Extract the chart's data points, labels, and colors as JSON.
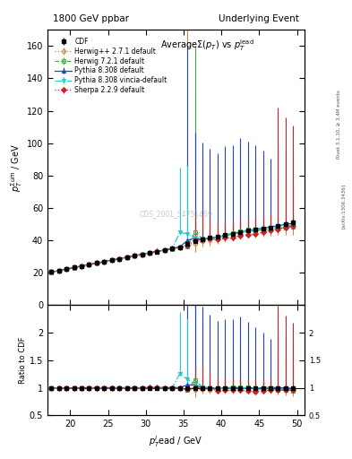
{
  "title_left": "1800 GeV ppbar",
  "title_right": "Underlying Event",
  "ylabel_main": "$p_T^{\\Sigma um}$ / GeV",
  "ylabel_ratio": "Ratio to CDF",
  "xlabel": "$p_T^{l}$ead / GeV",
  "plot_title": "Average$\\Sigma(p_{T})$ vs $p_T^{\\rm lead}$",
  "watermark": "CDS_2001_S4751469",
  "right_label": "Rivet 3.1.10, ≥ 3.4M events",
  "right_label2": "[arXiv:1306.3436]",
  "xlim": [
    17,
    51
  ],
  "ylim_main": [
    0,
    170
  ],
  "ylim_ratio": [
    0.5,
    2.5
  ],
  "xticks": [
    20,
    25,
    30,
    35,
    40,
    45,
    50
  ],
  "yticks_main": [
    0,
    20,
    40,
    60,
    80,
    100,
    120,
    140,
    160
  ],
  "yticks_ratio": [
    0.5,
    1.0,
    1.5,
    2.0
  ],
  "cdf": {
    "x": [
      17.5,
      18.5,
      19.5,
      20.5,
      21.5,
      22.5,
      23.5,
      24.5,
      25.5,
      26.5,
      27.5,
      28.5,
      29.5,
      30.5,
      31.5,
      32.5,
      33.5,
      34.5,
      35.5,
      36.5,
      37.5,
      38.5,
      39.5,
      40.5,
      41.5,
      42.5,
      43.5,
      44.5,
      45.5,
      46.5,
      47.5,
      48.5,
      49.5
    ],
    "y": [
      20.5,
      21.5,
      22.5,
      23.3,
      24.2,
      25.1,
      26.0,
      26.9,
      27.8,
      28.7,
      29.6,
      30.5,
      31.4,
      32.2,
      33.1,
      34.0,
      34.9,
      35.8,
      38.0,
      39.5,
      40.5,
      41.5,
      42.5,
      43.5,
      44.0,
      45.0,
      46.0,
      47.0,
      47.5,
      48.0,
      49.0,
      50.0,
      51.0
    ],
    "yerr": [
      0.2,
      0.2,
      0.2,
      0.2,
      0.2,
      0.2,
      0.2,
      0.2,
      0.2,
      0.2,
      0.2,
      0.2,
      0.2,
      0.2,
      0.2,
      0.2,
      0.2,
      0.2,
      0.3,
      0.3,
      0.3,
      0.3,
      0.4,
      0.4,
      0.5,
      0.5,
      0.6,
      0.7,
      0.8,
      1.0,
      1.2,
      1.5,
      2.0
    ],
    "color": "#000000",
    "marker": "s",
    "label": "CDF"
  },
  "herwig271": {
    "x": [
      17.5,
      18.5,
      19.5,
      20.5,
      21.5,
      22.5,
      23.5,
      24.5,
      25.5,
      26.5,
      27.5,
      28.5,
      29.5,
      30.5,
      31.5,
      32.5,
      33.5,
      34.5,
      35.5,
      36.5,
      37.5,
      38.5,
      39.5,
      40.5,
      41.5,
      42.5,
      43.5,
      44.5,
      45.5,
      46.5,
      47.5,
      48.5,
      49.5
    ],
    "y": [
      20.3,
      21.3,
      22.3,
      23.2,
      24.1,
      25.0,
      25.9,
      26.8,
      27.7,
      28.6,
      29.5,
      30.4,
      31.3,
      32.2,
      33.1,
      34.0,
      34.9,
      35.8,
      36.7,
      38.0,
      39.5,
      40.0,
      41.0,
      42.5,
      43.5,
      44.5,
      45.5,
      46.0,
      46.5,
      47.0,
      47.5,
      48.0,
      48.5
    ],
    "yerr_lo": [
      0.2,
      0.2,
      0.2,
      0.2,
      0.2,
      0.2,
      0.2,
      0.2,
      0.2,
      0.2,
      0.2,
      0.2,
      0.2,
      0.2,
      0.2,
      0.2,
      0.2,
      0.2,
      0.5,
      5.0,
      3.0,
      3.0,
      3.0,
      3.5,
      4.0,
      4.0,
      4.0,
      4.0,
      4.0,
      4.0,
      4.0,
      4.5,
      5.0
    ],
    "yerr_hi": [
      0.2,
      0.2,
      0.2,
      0.2,
      0.2,
      0.2,
      0.2,
      0.2,
      0.2,
      0.2,
      0.2,
      0.2,
      0.2,
      0.2,
      0.2,
      0.2,
      0.2,
      0.2,
      150.0,
      90.0,
      50.0,
      45.0,
      40.0,
      42.0,
      40.0,
      38.0,
      35.0,
      33.0,
      35.0,
      32.0,
      30.0,
      28.0,
      25.0
    ],
    "color": "#cc8844",
    "linestyle": "dotted",
    "marker": "o",
    "mfc": "none",
    "label": "Herwig++ 2.7.1 default"
  },
  "herwig721": {
    "x": [
      17.5,
      18.5,
      19.5,
      20.5,
      21.5,
      22.5,
      23.5,
      24.5,
      25.5,
      26.5,
      27.5,
      28.5,
      29.5,
      30.5,
      31.5,
      32.5,
      33.5,
      34.5,
      35.5,
      36.5,
      37.5,
      38.5,
      39.5,
      40.5,
      41.5,
      42.5,
      43.5,
      44.5,
      45.5,
      46.5,
      47.5,
      48.5,
      49.5
    ],
    "y": [
      20.4,
      21.3,
      22.3,
      23.2,
      24.1,
      25.0,
      26.0,
      26.9,
      27.8,
      28.7,
      29.6,
      30.5,
      31.4,
      32.2,
      33.1,
      33.9,
      34.8,
      35.7,
      36.5,
      45.0,
      41.0,
      41.5,
      42.5,
      43.5,
      44.5,
      45.5,
      46.5,
      46.0,
      46.5,
      47.0,
      47.5,
      48.0,
      48.5
    ],
    "yerr_lo": [
      0.2,
      0.2,
      0.2,
      0.2,
      0.2,
      0.2,
      0.2,
      0.2,
      0.2,
      0.2,
      0.2,
      0.2,
      0.2,
      0.2,
      0.2,
      0.2,
      0.2,
      0.2,
      0.2,
      1.5,
      1.0,
      1.0,
      1.0,
      1.0,
      1.0,
      1.0,
      1.0,
      1.0,
      1.0,
      1.0,
      1.0,
      1.0,
      1.0
    ],
    "yerr_hi": [
      0.2,
      0.2,
      0.2,
      0.2,
      0.2,
      0.2,
      0.2,
      0.2,
      0.2,
      0.2,
      0.2,
      0.2,
      0.2,
      0.2,
      0.2,
      0.2,
      0.2,
      0.2,
      0.2,
      115.0,
      5.0,
      5.0,
      5.0,
      5.0,
      5.0,
      5.0,
      5.0,
      5.0,
      5.0,
      5.0,
      5.0,
      5.0,
      5.0
    ],
    "color": "#44aa44",
    "linestyle": "dashed",
    "marker": "s",
    "mfc": "none",
    "label": "Herwig 7.2.1 default"
  },
  "pythia8308": {
    "x": [
      17.5,
      18.5,
      19.5,
      20.5,
      21.5,
      22.5,
      23.5,
      24.5,
      25.5,
      26.5,
      27.5,
      28.5,
      29.5,
      30.5,
      31.5,
      32.5,
      33.5,
      34.5,
      35.5,
      36.5,
      37.5,
      38.5,
      39.5,
      40.5,
      41.5,
      42.5,
      43.5,
      44.5,
      45.5,
      46.5,
      47.5,
      48.5,
      49.5
    ],
    "y": [
      20.5,
      21.4,
      22.4,
      23.3,
      24.2,
      25.2,
      26.1,
      27.0,
      27.9,
      28.8,
      29.7,
      30.6,
      31.5,
      32.4,
      33.3,
      34.2,
      35.1,
      36.0,
      40.0,
      41.5,
      40.5,
      41.5,
      42.0,
      43.0,
      44.0,
      45.0,
      46.0,
      47.0,
      47.5,
      48.5,
      49.0,
      50.0,
      50.5
    ],
    "yerr_lo": [
      0.2,
      0.2,
      0.2,
      0.2,
      0.2,
      0.2,
      0.2,
      0.2,
      0.2,
      0.2,
      0.2,
      0.2,
      0.2,
      0.2,
      0.2,
      0.2,
      0.2,
      0.2,
      1.5,
      2.0,
      2.0,
      1.5,
      1.5,
      1.5,
      1.5,
      1.5,
      1.5,
      1.5,
      2.0,
      3.0,
      2.5,
      2.5,
      3.0
    ],
    "yerr_hi": [
      0.2,
      0.2,
      0.2,
      0.2,
      0.2,
      0.2,
      0.2,
      0.2,
      0.2,
      0.2,
      0.2,
      0.2,
      0.2,
      0.2,
      0.2,
      0.2,
      0.2,
      0.2,
      120.0,
      65.0,
      60.0,
      55.0,
      52.0,
      55.0,
      55.0,
      58.0,
      55.0,
      52.0,
      48.0,
      42.0,
      47.0,
      45.0,
      44.0
    ],
    "color": "#2244cc",
    "linestyle": "solid",
    "marker": "^",
    "mfc": "#2244cc",
    "label": "Pythia 8.308 default"
  },
  "pythia8308_vincia": {
    "x": [
      17.5,
      18.5,
      19.5,
      20.5,
      21.5,
      22.5,
      23.5,
      24.5,
      25.5,
      26.5,
      27.5,
      28.5,
      29.5,
      30.5,
      31.5,
      32.5,
      33.5,
      34.5,
      35.5,
      36.5,
      37.5,
      38.5,
      39.5,
      40.5,
      41.5,
      42.5,
      43.5,
      44.5,
      45.5,
      46.5,
      47.5,
      48.5,
      49.5
    ],
    "y": [
      20.4,
      21.3,
      22.3,
      23.2,
      24.1,
      25.0,
      25.9,
      26.8,
      27.7,
      28.6,
      29.5,
      30.4,
      31.3,
      32.2,
      33.0,
      33.9,
      34.8,
      45.0,
      44.0,
      42.0,
      41.0,
      41.5,
      42.0,
      43.0,
      44.0,
      45.0,
      46.0,
      47.0,
      47.5,
      48.0,
      48.5,
      49.0,
      49.5
    ],
    "yerr_lo": [
      0.2,
      0.2,
      0.2,
      0.2,
      0.2,
      0.2,
      0.2,
      0.2,
      0.2,
      0.2,
      0.2,
      0.2,
      0.2,
      0.2,
      0.2,
      0.2,
      0.2,
      1.5,
      3.0,
      2.0,
      1.5,
      1.5,
      1.5,
      1.5,
      1.5,
      1.5,
      1.5,
      1.5,
      2.0,
      2.0,
      2.0,
      2.0,
      2.5
    ],
    "yerr_hi": [
      0.2,
      0.2,
      0.2,
      0.2,
      0.2,
      0.2,
      0.2,
      0.2,
      0.2,
      0.2,
      0.2,
      0.2,
      0.2,
      0.2,
      0.2,
      0.2,
      0.2,
      40.0,
      42.0,
      10.0,
      6.0,
      6.0,
      6.0,
      6.0,
      6.0,
      6.0,
      6.0,
      6.0,
      6.0,
      6.0,
      6.0,
      6.0,
      6.0
    ],
    "color": "#22cccc",
    "linestyle": "dashdot",
    "marker": "v",
    "mfc": "#22cccc",
    "label": "Pythia 8.308 vincia-default"
  },
  "sherpa229": {
    "x": [
      17.5,
      18.5,
      19.5,
      20.5,
      21.5,
      22.5,
      23.5,
      24.5,
      25.5,
      26.5,
      27.5,
      28.5,
      29.5,
      30.5,
      31.5,
      32.5,
      33.5,
      34.5,
      35.5,
      36.5,
      37.5,
      38.5,
      39.5,
      40.5,
      41.5,
      42.5,
      43.5,
      44.5,
      45.5,
      46.5,
      47.5,
      48.5,
      49.5
    ],
    "y": [
      20.5,
      21.5,
      22.4,
      23.3,
      24.2,
      25.1,
      26.0,
      26.9,
      27.8,
      28.7,
      29.6,
      30.5,
      31.4,
      32.3,
      33.2,
      34.0,
      34.9,
      35.8,
      37.0,
      40.0,
      40.5,
      41.0,
      40.5,
      41.5,
      42.0,
      43.0,
      43.5,
      44.0,
      45.0,
      46.0,
      47.0,
      48.0,
      49.0
    ],
    "yerr_lo": [
      0.2,
      0.2,
      0.2,
      0.2,
      0.2,
      0.2,
      0.2,
      0.2,
      0.2,
      0.2,
      0.2,
      0.2,
      0.2,
      0.2,
      0.2,
      0.2,
      0.2,
      0.2,
      0.3,
      1.5,
      1.5,
      1.5,
      1.5,
      1.5,
      1.5,
      1.5,
      1.5,
      1.5,
      1.5,
      1.5,
      2.0,
      2.0,
      2.5
    ],
    "yerr_hi": [
      0.2,
      0.2,
      0.2,
      0.2,
      0.2,
      0.2,
      0.2,
      0.2,
      0.2,
      0.2,
      0.2,
      0.2,
      0.2,
      0.2,
      0.2,
      0.2,
      0.2,
      0.2,
      0.3,
      15.0,
      15.0,
      12.0,
      10.0,
      10.0,
      10.0,
      10.0,
      10.0,
      10.0,
      10.0,
      10.0,
      75.0,
      68.0,
      62.0
    ],
    "color": "#cc2222",
    "linestyle": "dotted",
    "marker": "D",
    "mfc": "#cc2222",
    "label": "Sherpa 2.2.9 default"
  },
  "bg_color": "#ffffff"
}
